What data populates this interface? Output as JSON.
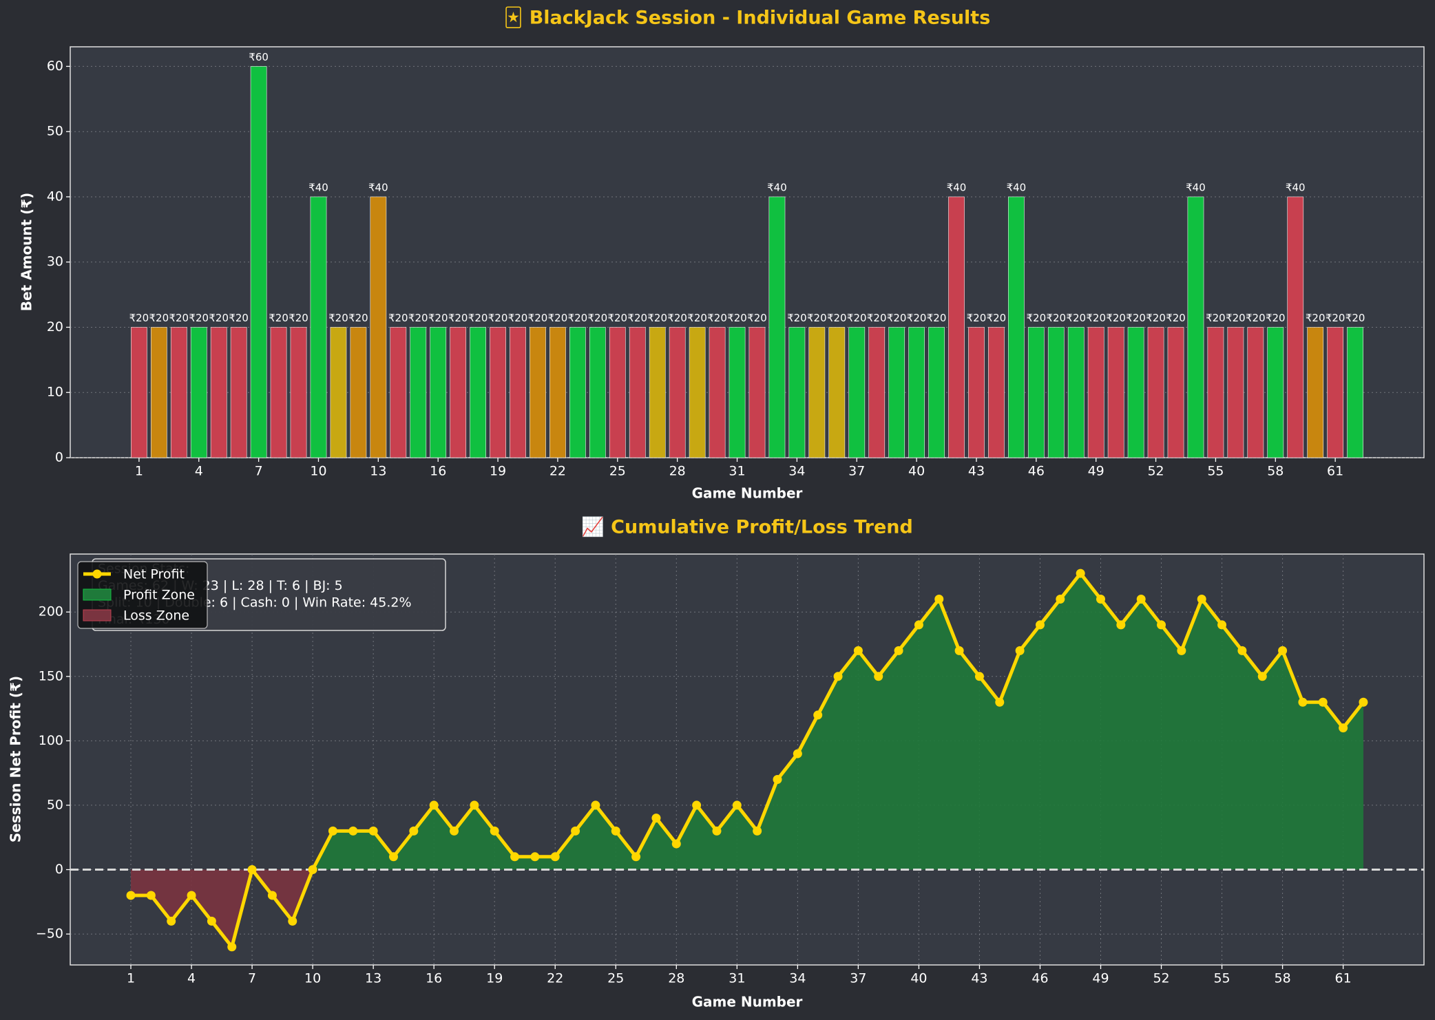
{
  "chart_data": [
    {
      "type": "bar",
      "title": "🃏 BlackJack Session - Individual Game Results",
      "x_label": "Game Number",
      "y_label": "Bet Amount (₹)",
      "x": [
        1,
        2,
        3,
        4,
        5,
        6,
        7,
        8,
        9,
        10,
        11,
        12,
        13,
        14,
        15,
        16,
        17,
        18,
        19,
        20,
        21,
        22,
        23,
        24,
        25,
        26,
        27,
        28,
        29,
        30,
        31,
        32,
        33,
        34,
        35,
        36,
        37,
        38,
        39,
        40,
        41,
        42,
        43,
        44,
        45,
        46,
        47,
        48,
        49,
        50,
        51,
        52,
        53,
        54,
        55,
        56,
        57,
        58,
        59,
        60,
        61,
        62
      ],
      "values": [
        20,
        20,
        20,
        20,
        20,
        20,
        60,
        20,
        20,
        40,
        20,
        20,
        40,
        20,
        20,
        20,
        20,
        20,
        20,
        20,
        20,
        20,
        20,
        20,
        20,
        20,
        20,
        20,
        20,
        20,
        20,
        20,
        40,
        20,
        20,
        20,
        20,
        20,
        20,
        20,
        20,
        40,
        20,
        20,
        40,
        20,
        20,
        20,
        20,
        20,
        20,
        20,
        20,
        40,
        20,
        20,
        20,
        20,
        40,
        20,
        20,
        20
      ],
      "value_labels": [
        "₹20",
        "₹20",
        "₹20",
        "₹20",
        "₹20",
        "₹20",
        "₹60",
        "₹20",
        "₹20",
        "₹40",
        "₹20",
        "₹20",
        "₹40",
        "₹20",
        "₹20",
        "₹20",
        "₹20",
        "₹20",
        "₹20",
        "₹20",
        "₹20",
        "₹20",
        "₹20",
        "₹20",
        "₹20",
        "₹20",
        "₹20",
        "₹20",
        "₹20",
        "₹20",
        "₹20",
        "₹20",
        "₹40",
        "₹20",
        "₹20",
        "₹20",
        "₹20",
        "₹20",
        "₹20",
        "₹20",
        "₹20",
        "₹40",
        "₹20",
        "₹20",
        "₹40",
        "₹20",
        "₹20",
        "₹20",
        "₹20",
        "₹20",
        "₹20",
        "₹20",
        "₹20",
        "₹40",
        "₹20",
        "₹20",
        "₹20",
        "₹20",
        "₹40",
        "₹20",
        "₹20",
        "₹20"
      ],
      "colors": [
        "#c8404f",
        "#c8860f",
        "#c8404f",
        "#10c040",
        "#c8404f",
        "#c8404f",
        "#10c040",
        "#c8404f",
        "#c8404f",
        "#10c040",
        "#c8a812",
        "#c8860f",
        "#c8860f",
        "#c8404f",
        "#10c040",
        "#10c040",
        "#c8404f",
        "#10c040",
        "#c8404f",
        "#c8404f",
        "#c8860f",
        "#c8860f",
        "#10c040",
        "#10c040",
        "#c8404f",
        "#c8404f",
        "#c8a812",
        "#c8404f",
        "#c8a812",
        "#c8404f",
        "#10c040",
        "#c8404f",
        "#10c040",
        "#10c040",
        "#c8a812",
        "#c8a812",
        "#10c040",
        "#c8404f",
        "#10c040",
        "#10c040",
        "#10c040",
        "#c8404f",
        "#c8404f",
        "#c8404f",
        "#10c040",
        "#10c040",
        "#10c040",
        "#10c040",
        "#c8404f",
        "#c8404f",
        "#10c040",
        "#c8404f",
        "#c8404f",
        "#10c040",
        "#c8404f",
        "#c8404f",
        "#c8404f",
        "#10c040",
        "#c8404f",
        "#c8860f",
        "#c8404f",
        "#10c040"
      ],
      "xlim": [
        -2.45,
        65.45
      ],
      "xticks": [
        1,
        4,
        7,
        10,
        13,
        16,
        19,
        22,
        25,
        28,
        31,
        34,
        37,
        40,
        43,
        46,
        49,
        52,
        55,
        58,
        61
      ],
      "ylim": [
        0,
        63
      ],
      "yticks": [
        0,
        10,
        20,
        30,
        40,
        50,
        60
      ],
      "grid": "y"
    },
    {
      "type": "line",
      "title": "📈 Cumulative Profit/Loss Trend",
      "x_label": "Game Number",
      "y_label": "Session Net Profit (₹)",
      "x": [
        1,
        2,
        3,
        4,
        5,
        6,
        7,
        8,
        9,
        10,
        11,
        12,
        13,
        14,
        15,
        16,
        17,
        18,
        19,
        20,
        21,
        22,
        23,
        24,
        25,
        26,
        27,
        28,
        29,
        30,
        31,
        32,
        33,
        34,
        35,
        36,
        37,
        38,
        39,
        40,
        41,
        42,
        43,
        44,
        45,
        46,
        47,
        48,
        49,
        50,
        51,
        52,
        53,
        54,
        55,
        56,
        57,
        58,
        59,
        60,
        61,
        62
      ],
      "series": [
        {
          "name": "Net Profit",
          "color": "#ffd700",
          "values": [
            -20,
            -20,
            -40,
            -20,
            -40,
            -60,
            0,
            -20,
            -40,
            0,
            30,
            30,
            30,
            10,
            30,
            50,
            30,
            50,
            30,
            10,
            10,
            10,
            30,
            50,
            30,
            10,
            40,
            20,
            50,
            30,
            50,
            30,
            70,
            90,
            120,
            150,
            170,
            150,
            170,
            190,
            210,
            170,
            150,
            130,
            170,
            190,
            210,
            230,
            210,
            190,
            210,
            190,
            170,
            210,
            190,
            170,
            150,
            170,
            130,
            130,
            110,
            130
          ]
        }
      ],
      "zones": [
        {
          "name": "Profit Zone",
          "color": "#1f7a3a"
        },
        {
          "name": "Loss Zone",
          "color": "#7a3440"
        }
      ],
      "annotation": [
        "Session Stats:",
        "Games: 62 | W: 23 | L: 28 | T: 6 | BJ: 5",
        "Split: 10 | Double: 6 | Cash: 0 | Win Rate: 45.2%",
        "Final: ₹130"
      ],
      "xlim": [
        -2,
        65
      ],
      "xticks": [
        1,
        4,
        7,
        10,
        13,
        16,
        19,
        22,
        25,
        28,
        31,
        34,
        37,
        40,
        43,
        46,
        49,
        52,
        55,
        58,
        61
      ],
      "ylim": [
        -74,
        245
      ],
      "yticks": [
        {
          "value": -50,
          "label": "−50"
        },
        0,
        50,
        100,
        150,
        200
      ],
      "grid": "both",
      "legend": "upper left"
    }
  ]
}
